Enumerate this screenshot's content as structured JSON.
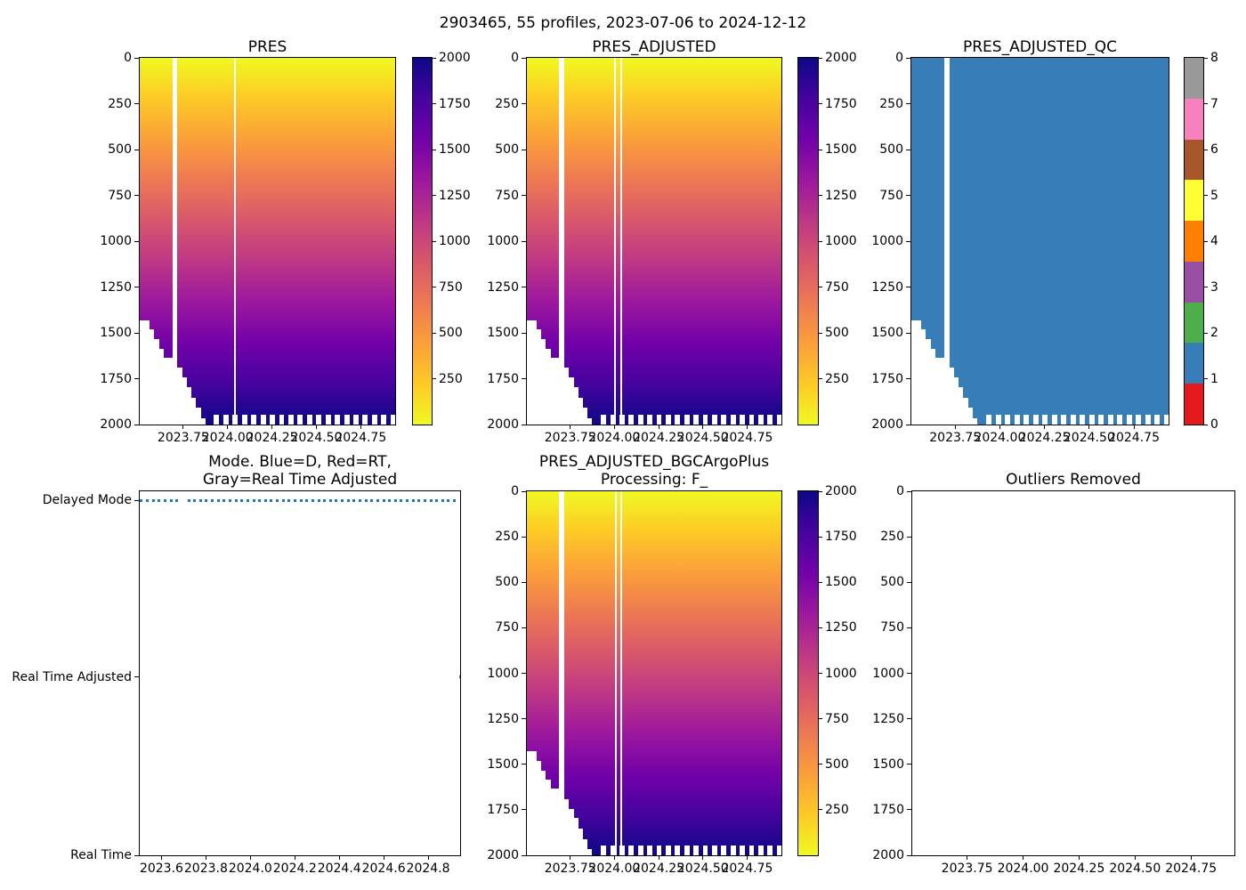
{
  "figure": {
    "suptitle": "2903465, 55 profiles, 2023-07-06 to 2024-12-12",
    "platform_id": "2903465",
    "n_profiles_text": "55 profiles",
    "background": "#ffffff"
  },
  "palette": {
    "plasma_top_to_bottom": [
      "#f0f921",
      "#fdca26",
      "#fb9f3a",
      "#ed7953",
      "#d8576b",
      "#bd3786",
      "#9c179e",
      "#7201a8",
      "#46039f",
      "#0d0887"
    ],
    "qc_set1": {
      "red": "#e41a1c",
      "blue": "#377eb8",
      "green": "#4daf4a",
      "purple": "#984ea3",
      "orange": "#ff7f00",
      "yellow": "#ffff33",
      "brown": "#a65628",
      "pink": "#f781bf",
      "gray": "#999999"
    },
    "mode_dot": "#1f77b4",
    "axis": "#000000"
  },
  "profiles": {
    "count": 55,
    "time_start": 2023.51,
    "time_end": 2024.945,
    "missing_profile_index": 7,
    "max_depth": [
      1430,
      1430,
      1480,
      1535,
      1585,
      1635,
      1635,
      null,
      1690,
      1745,
      1795,
      1855,
      1910,
      1965,
      2000,
      2000,
      1945,
      2000,
      1945,
      2000,
      1945,
      2000,
      1945,
      2000,
      1945,
      2000,
      1945,
      2000,
      1945,
      2000,
      1945,
      2000,
      1945,
      2000,
      1945,
      2000,
      1945,
      2000,
      1945,
      2000,
      1945,
      2000,
      1945,
      2000,
      1945,
      2000,
      1945,
      2000,
      1945,
      2000,
      1945,
      2000,
      1945,
      2000,
      1945
    ]
  },
  "axes": {
    "heatmap_xlim": [
      2023.505,
      2024.944
    ],
    "heatmap_xtick_values": [
      2023.75,
      2024.0,
      2024.25,
      2024.5,
      2024.75
    ],
    "heatmap_xtick_labels": [
      "2023.75",
      "2024.00",
      "2024.25",
      "2024.50",
      "2024.75"
    ],
    "heatmap_ylim": [
      0,
      2000
    ],
    "heatmap_ytick_values": [
      0,
      250,
      500,
      750,
      1000,
      1250,
      1500,
      1750,
      2000
    ],
    "heatmap_ytick_labels": [
      "0",
      "250",
      "500",
      "750",
      "1000",
      "1250",
      "1500",
      "1750",
      "2000"
    ],
    "mode_xlim": [
      2023.502,
      2024.944
    ],
    "mode_xtick_values": [
      2023.6,
      2023.8,
      2024.0,
      2024.2,
      2024.4,
      2024.6,
      2024.8
    ],
    "mode_xtick_labels": [
      "2023.6",
      "2023.8",
      "2024.0",
      "2024.2",
      "2024.4",
      "2024.6",
      "2024.8"
    ]
  },
  "colorbar_pressure": {
    "vmin": 0,
    "vmax": 2000,
    "tick_labels_top_to_bottom": [
      "2000",
      "1750",
      "1500",
      "1250",
      "1000",
      "750",
      "500",
      "250"
    ]
  },
  "colorbar_qc": {
    "tick_labels_top_to_bottom": [
      "8",
      "7",
      "6",
      "5",
      "4",
      "3",
      "2",
      "1",
      "0"
    ],
    "segment_colors_top_to_bottom": [
      "#999999",
      "#f781bf",
      "#a65628",
      "#ffff33",
      "#ff7f00",
      "#984ea3",
      "#4daf4a",
      "#377eb8",
      "#e41a1c"
    ]
  },
  "chart_data": [
    {
      "id": "pres",
      "type": "heatmap",
      "title": "PRES",
      "colormap": "plasma_r",
      "vmin": 0,
      "vmax": 2000,
      "value_rule": "cell value = pressure (dbar) = depth; 0 at surface down to per-profile max depth",
      "thin_gap_fractions": [
        0.374
      ]
    },
    {
      "id": "pres_adjusted",
      "type": "heatmap",
      "title": "PRES_ADJUSTED",
      "colormap": "plasma_r",
      "vmin": 0,
      "vmax": 2000,
      "value_rule": "cell value = adjusted pressure (dbar) = depth",
      "thin_gap_fractions": [
        0.347,
        0.371
      ]
    },
    {
      "id": "pres_adjusted_qc",
      "type": "heatmap",
      "title": "PRES_ADJUSTED_QC",
      "colormap": "Set1 discrete flags 0-8",
      "uniform_value": 1,
      "value_rule": "QC flag = 1 (good) for all sampled cells",
      "thin_gap_fractions": []
    },
    {
      "id": "mode",
      "type": "scatter",
      "title_lines": [
        "Mode. Blue=D, Red=RT,",
        "Gray=Real Time Adjusted"
      ],
      "y_categories": [
        "Delayed Mode",
        "Real Time Adjusted",
        "Real Time"
      ],
      "legend_meaning": {
        "D": "Delayed Mode",
        "A": "Real Time Adjusted"
      },
      "levels": [
        "D",
        "D",
        "D",
        "D",
        "D",
        "D",
        "D",
        null,
        "D",
        "D",
        "D",
        "D",
        "D",
        "D",
        "D",
        "D",
        "D",
        "D",
        "D",
        "D",
        "D",
        "D",
        "D",
        "D",
        "D",
        "D",
        "D",
        "D",
        "D",
        "D",
        "D",
        "D",
        "D",
        "D",
        "D",
        "D",
        "D",
        "D",
        "D",
        "D",
        "D",
        "D",
        "D",
        "D",
        "D",
        "D",
        "D",
        "D",
        "D",
        "D",
        "D",
        "D",
        "D",
        "D",
        "A"
      ]
    },
    {
      "id": "pres_adjusted_bgc",
      "type": "heatmap",
      "title_lines": [
        "PRES_ADJUSTED_BGCArgoPlus",
        "Processing: F_"
      ],
      "colormap": "plasma_r",
      "vmin": 0,
      "vmax": 2000,
      "value_rule": "cell value = BGC-Argo-Plus adjusted pressure (dbar) = depth",
      "thin_gap_fractions": [
        0.348,
        0.371
      ]
    },
    {
      "id": "outliers",
      "type": "empty",
      "title": "Outliers Removed",
      "data_points": []
    }
  ]
}
